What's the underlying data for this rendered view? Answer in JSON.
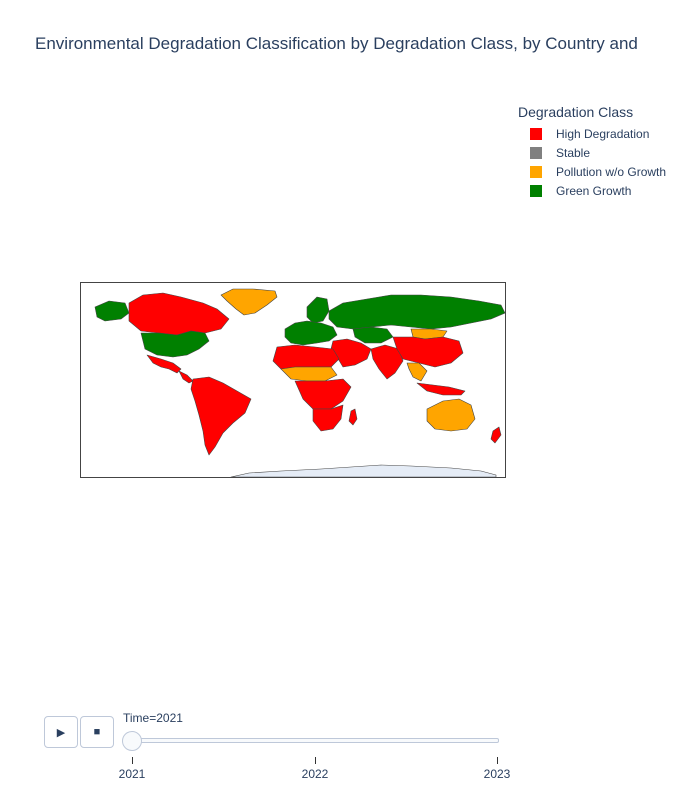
{
  "title": "Environmental Degradation Classification by Degradation Class, by Country and",
  "legend": {
    "title": "Degradation Class",
    "items": [
      {
        "label": "High Degradation",
        "color": "#ff0000"
      },
      {
        "label": "Stable",
        "color": "#808080"
      },
      {
        "label": "Pollution w/o Growth",
        "color": "#ffa500"
      },
      {
        "label": "Green Growth",
        "color": "#008000"
      }
    ]
  },
  "colors": {
    "high": "#ff0000",
    "stable": "#808080",
    "pollution": "#ffa500",
    "green": "#008000",
    "nodata": "#e5ecf6",
    "border": "#444444"
  },
  "controls": {
    "play_icon": "▶",
    "stop_icon": "■"
  },
  "slider": {
    "current_label": "Time=2021",
    "steps": [
      "2021",
      "2022",
      "2023"
    ],
    "active_index": 0
  },
  "map": {
    "regions": [
      {
        "name": "Canada",
        "class": "high"
      },
      {
        "name": "Greenland",
        "class": "pollution"
      },
      {
        "name": "Alaska",
        "class": "green"
      },
      {
        "name": "United States",
        "class": "green"
      },
      {
        "name": "Mexico",
        "class": "high"
      },
      {
        "name": "Central America",
        "class": "high"
      },
      {
        "name": "South America",
        "class": "high"
      },
      {
        "name": "Scandinavia",
        "class": "green"
      },
      {
        "name": "Europe",
        "class": "green"
      },
      {
        "name": "Russia",
        "class": "green"
      },
      {
        "name": "North Africa",
        "class": "high"
      },
      {
        "name": "Sahel",
        "class": "pollution"
      },
      {
        "name": "Central Africa",
        "class": "high"
      },
      {
        "name": "Southern Africa",
        "class": "high"
      },
      {
        "name": "Madagascar",
        "class": "high"
      },
      {
        "name": "Middle East",
        "class": "high"
      },
      {
        "name": "Central Asia",
        "class": "green"
      },
      {
        "name": "South Asia",
        "class": "high"
      },
      {
        "name": "China",
        "class": "high"
      },
      {
        "name": "Mongolia",
        "class": "pollution"
      },
      {
        "name": "Southeast Asia",
        "class": "pollution"
      },
      {
        "name": "Indonesia",
        "class": "high"
      },
      {
        "name": "Australia",
        "class": "pollution"
      },
      {
        "name": "New Zealand",
        "class": "high"
      },
      {
        "name": "Antarctica",
        "class": "nodata"
      }
    ]
  }
}
